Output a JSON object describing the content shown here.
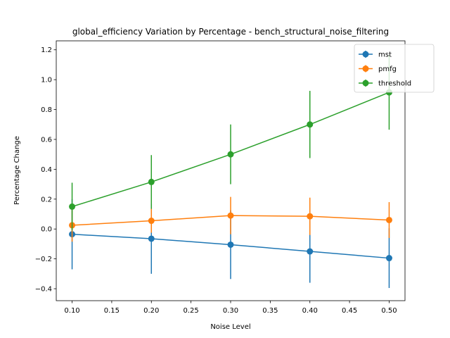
{
  "chart_data": {
    "type": "line",
    "title": "global_efficiency Variation by Percentage - bench_structural_noise_filtering",
    "xlabel": "Noise Level",
    "ylabel": "Percentage Change",
    "x": [
      0.1,
      0.2,
      0.3,
      0.4,
      0.5
    ],
    "xlim": [
      0.08,
      0.52
    ],
    "ylim": [
      -0.48,
      1.26
    ],
    "xticks": [
      0.1,
      0.15,
      0.2,
      0.25,
      0.3,
      0.35,
      0.4,
      0.45,
      0.5
    ],
    "xtick_labels": [
      "0.10",
      "0.15",
      "0.20",
      "0.25",
      "0.30",
      "0.35",
      "0.40",
      "0.45",
      "0.50"
    ],
    "yticks": [
      -0.4,
      -0.2,
      0.0,
      0.2,
      0.4,
      0.6,
      0.8,
      1.0,
      1.2
    ],
    "ytick_labels": [
      "−0.4",
      "−0.2",
      "0.0",
      "0.2",
      "0.4",
      "0.6",
      "0.8",
      "1.0",
      "1.2"
    ],
    "grid": false,
    "legend_position": "top-right",
    "series": [
      {
        "name": "mst",
        "color": "#1f77b4",
        "values": [
          -0.035,
          -0.065,
          -0.105,
          -0.15,
          -0.195
        ],
        "errors": [
          0.235,
          0.235,
          0.23,
          0.21,
          0.2
        ]
      },
      {
        "name": "pmfg",
        "color": "#ff7f0e",
        "values": [
          0.025,
          0.055,
          0.09,
          0.085,
          0.06
        ],
        "errors": [
          0.11,
          0.08,
          0.125,
          0.125,
          0.12
        ]
      },
      {
        "name": "threshold",
        "color": "#2ca02c",
        "values": [
          0.15,
          0.315,
          0.5,
          0.7,
          0.915
        ],
        "errors": [
          0.16,
          0.18,
          0.2,
          0.225,
          0.25
        ]
      }
    ]
  }
}
